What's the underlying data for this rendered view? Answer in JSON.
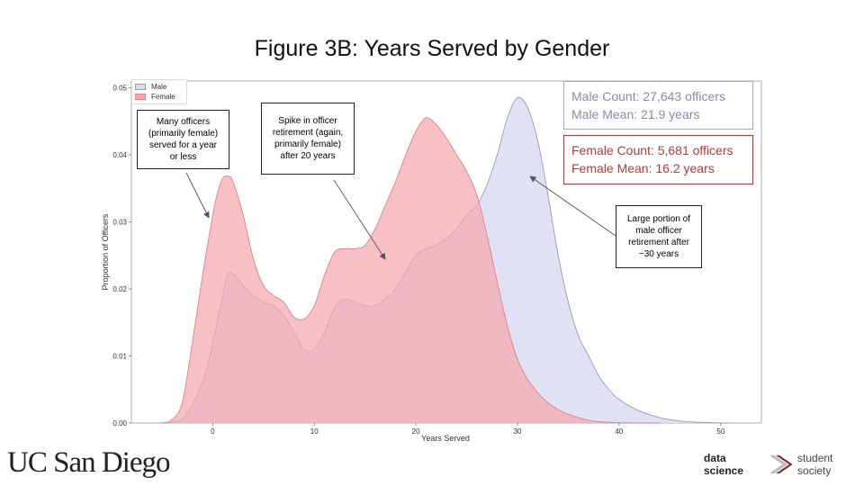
{
  "title": "Figure 3B: Years Served by Gender",
  "chart_data": {
    "type": "area",
    "xlabel": "Years Served",
    "ylabel": "Proportion of Officers",
    "xlim": [
      -8,
      54
    ],
    "ylim": [
      0,
      0.051
    ],
    "xticks": [
      0,
      10,
      20,
      30,
      40,
      50
    ],
    "yticks": [
      0.0,
      0.01,
      0.02,
      0.03,
      0.04,
      0.05
    ],
    "xtick_labels": [
      "0",
      "10",
      "20",
      "30",
      "40",
      "50"
    ],
    "ytick_labels": [
      "0.00",
      "0.01",
      "0.02",
      "0.03",
      "0.04",
      "0.05"
    ],
    "grid": false,
    "legend_position": "top-left",
    "series": [
      {
        "name": "Male",
        "fill": "#dcdcf3",
        "stroke": "#9a9ab8",
        "x": [
          -5,
          -3,
          -1,
          0,
          1,
          1.5,
          2,
          3,
          4,
          5,
          6,
          7,
          8,
          9,
          10,
          11,
          12,
          13,
          14,
          15,
          16,
          17,
          18,
          19,
          20,
          21,
          22,
          23,
          24,
          25,
          26,
          27,
          28,
          29,
          30,
          31,
          32,
          33,
          34,
          35,
          36,
          37,
          38,
          39,
          40,
          42,
          44,
          46,
          48,
          50,
          51
        ],
        "y": [
          0,
          0.0005,
          0.006,
          0.012,
          0.019,
          0.0222,
          0.0222,
          0.0205,
          0.019,
          0.018,
          0.0175,
          0.016,
          0.0135,
          0.011,
          0.011,
          0.0135,
          0.0172,
          0.0185,
          0.018,
          0.0175,
          0.0175,
          0.0185,
          0.02,
          0.0225,
          0.025,
          0.026,
          0.0265,
          0.0275,
          0.029,
          0.031,
          0.0325,
          0.0355,
          0.04,
          0.0455,
          0.0485,
          0.047,
          0.042,
          0.034,
          0.025,
          0.018,
          0.013,
          0.01,
          0.007,
          0.005,
          0.0035,
          0.0018,
          0.0008,
          0.0003,
          0.0001,
          2e-05,
          0
        ]
      },
      {
        "name": "Female",
        "fill": "#f4a8ae",
        "stroke": "#e0808a",
        "x": [
          -5,
          -4,
          -3,
          -2,
          -1,
          0,
          0.5,
          1,
          1.5,
          2,
          3,
          4,
          5,
          6,
          7,
          8,
          9,
          10,
          11,
          12,
          13,
          14,
          15,
          16,
          17,
          18,
          19,
          20,
          21,
          22,
          23,
          24,
          25,
          26,
          27,
          28,
          29,
          30,
          31,
          32,
          33,
          34,
          35,
          36,
          37,
          38,
          40,
          42,
          44
        ],
        "y": [
          0,
          0.0005,
          0.003,
          0.012,
          0.022,
          0.031,
          0.0345,
          0.0365,
          0.0368,
          0.036,
          0.031,
          0.0245,
          0.0205,
          0.019,
          0.018,
          0.0158,
          0.0155,
          0.0175,
          0.022,
          0.0255,
          0.026,
          0.026,
          0.0265,
          0.029,
          0.0325,
          0.036,
          0.04,
          0.0435,
          0.0455,
          0.0445,
          0.0425,
          0.04,
          0.0375,
          0.034,
          0.028,
          0.021,
          0.0145,
          0.0095,
          0.0065,
          0.0045,
          0.003,
          0.002,
          0.0013,
          0.0008,
          0.0004,
          0.0002,
          5e-05,
          1e-05,
          0
        ]
      }
    ],
    "annotations": [
      {
        "id": "female-short",
        "text": [
          "Many officers",
          "(primarily female)",
          "served for a year",
          "or less"
        ]
      },
      {
        "id": "female-spike",
        "text": [
          "Spike in officer",
          "retirement (again,",
          "primarily female)",
          "after 20 years"
        ]
      },
      {
        "id": "male-30",
        "text": [
          "Large portion of",
          "male officer",
          "retirement after",
          "~30 years"
        ]
      }
    ]
  },
  "stats": {
    "male_count": "Male Count: 27,643 officers",
    "male_mean": "Male Mean: 21.9 years",
    "female_count": "Female Count: 5,681 officers",
    "female_mean": "Female Mean: 16.2 years"
  },
  "branding": {
    "ucsd": "UC San Diego",
    "dss_bold": "data science",
    "dss_light": "student society"
  }
}
